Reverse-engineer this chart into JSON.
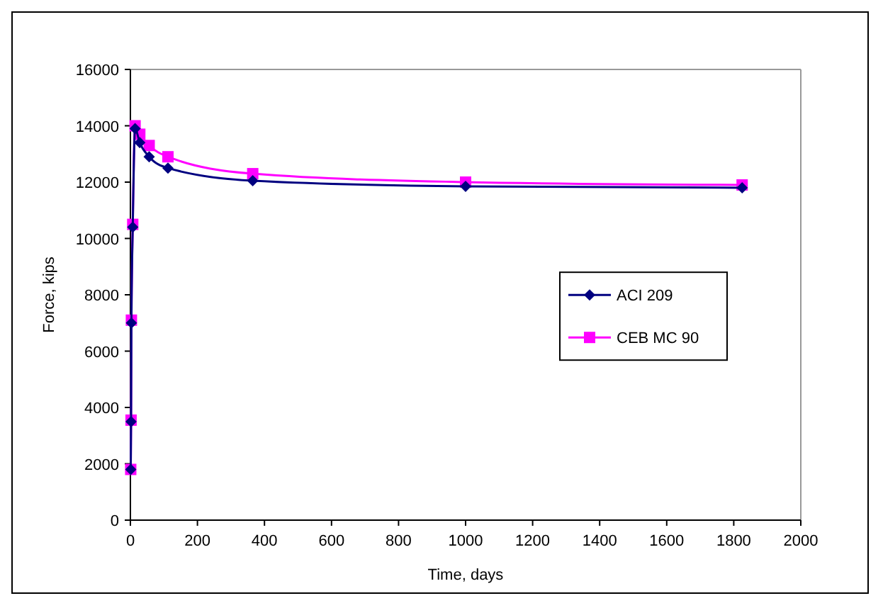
{
  "chart_data": {
    "type": "line",
    "xlabel": "Time, days",
    "ylabel": "Force, kips",
    "xlim": [
      0,
      2000
    ],
    "xticks": [
      0,
      200,
      400,
      600,
      800,
      1000,
      1200,
      1400,
      1600,
      1800,
      2000
    ],
    "ylim": [
      0,
      16000
    ],
    "yticks": [
      0,
      2000,
      4000,
      6000,
      8000,
      10000,
      12000,
      14000,
      16000
    ],
    "legend": "right",
    "grid": false,
    "series": [
      {
        "name": "ACI 209",
        "color": "#000080",
        "marker": "diamond",
        "x": [
          1,
          2,
          3,
          7,
          14,
          28,
          56,
          112,
          365,
          1000,
          1825
        ],
        "values": [
          1800,
          3500,
          7000,
          10400,
          13900,
          13400,
          12900,
          12500,
          12050,
          11850,
          11800
        ]
      },
      {
        "name": "CEB MC 90",
        "color": "#ff00ff",
        "marker": "square",
        "x": [
          1,
          2,
          3,
          7,
          14,
          28,
          56,
          112,
          365,
          1000,
          1825
        ],
        "values": [
          1800,
          3550,
          7100,
          10500,
          14000,
          13700,
          13300,
          12900,
          12300,
          12000,
          11900
        ]
      }
    ]
  }
}
